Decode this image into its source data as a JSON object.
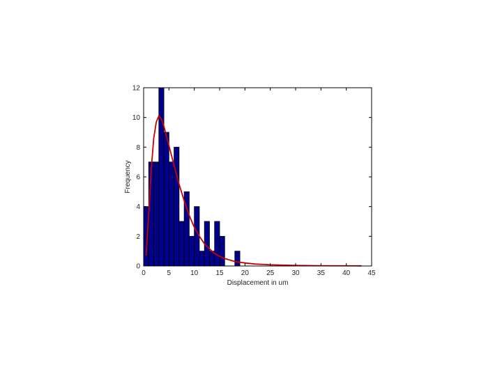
{
  "chart_data": {
    "type": "bar",
    "xlabel": "Displacement in um",
    "ylabel": "Frequency",
    "xlim": [
      0,
      45
    ],
    "ylim": [
      0,
      12
    ],
    "xticks": [
      0,
      5,
      10,
      15,
      20,
      25,
      30,
      35,
      40,
      45
    ],
    "yticks": [
      0,
      2,
      4,
      6,
      8,
      10,
      12
    ],
    "bin_width": 1,
    "bins": [
      {
        "x": 0.5,
        "value": 4
      },
      {
        "x": 1.5,
        "value": 7
      },
      {
        "x": 2.5,
        "value": 7
      },
      {
        "x": 3.5,
        "value": 12
      },
      {
        "x": 4.5,
        "value": 9
      },
      {
        "x": 5.5,
        "value": 7
      },
      {
        "x": 6.5,
        "value": 8
      },
      {
        "x": 7.5,
        "value": 3
      },
      {
        "x": 8.5,
        "value": 5
      },
      {
        "x": 9.5,
        "value": 2
      },
      {
        "x": 10.5,
        "value": 4
      },
      {
        "x": 11.5,
        "value": 1
      },
      {
        "x": 12.5,
        "value": 3
      },
      {
        "x": 13.5,
        "value": 1
      },
      {
        "x": 14.5,
        "value": 3
      },
      {
        "x": 15.5,
        "value": 2
      },
      {
        "x": 18.5,
        "value": 1
      }
    ],
    "fit_curve": [
      [
        0.5,
        0.7
      ],
      [
        1,
        3.5
      ],
      [
        1.5,
        6.5
      ],
      [
        2,
        8.6
      ],
      [
        2.5,
        9.7
      ],
      [
        3,
        10.1
      ],
      [
        3.5,
        9.9
      ],
      [
        4,
        9.4
      ],
      [
        5,
        8.1
      ],
      [
        6,
        6.8
      ],
      [
        7,
        5.5
      ],
      [
        8,
        4.4
      ],
      [
        9,
        3.4
      ],
      [
        10,
        2.6
      ],
      [
        11,
        2.0
      ],
      [
        12,
        1.5
      ],
      [
        13,
        1.15
      ],
      [
        14,
        0.85
      ],
      [
        15,
        0.65
      ],
      [
        16,
        0.5
      ],
      [
        18,
        0.3
      ],
      [
        20,
        0.2
      ],
      [
        22,
        0.13
      ],
      [
        25,
        0.08
      ],
      [
        30,
        0.04
      ],
      [
        35,
        0.02
      ],
      [
        43,
        0.01
      ]
    ],
    "colors": {
      "bar_fill": "#00008b",
      "bar_stroke": "#000000",
      "curve": "#cc0000",
      "axis": "#000000"
    }
  }
}
